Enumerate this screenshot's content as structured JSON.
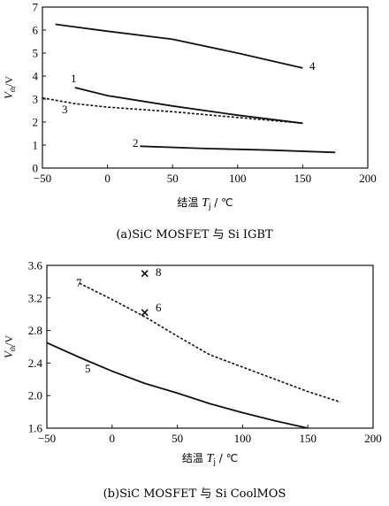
{
  "captions": [
    "(a)SiC MOSFET 与 Si IGBT",
    "(b)SiC MOSFET 与 Si CoolMOS"
  ],
  "axis_labels": {
    "x_prefix": "结温",
    "x_var": "T",
    "x_sub": "j",
    "x_unit": " / ℃",
    "y_var": "V",
    "y_sub": "th",
    "y_unit": "/V"
  },
  "chart_data": [
    {
      "type": "line",
      "caption": "(a)SiC MOSFET 与 Si IGBT",
      "xlim": [
        -50,
        200
      ],
      "ylim": [
        0,
        7
      ],
      "xticks": [
        -50,
        0,
        50,
        100,
        150,
        200
      ],
      "yticks": [
        0,
        1,
        2,
        3,
        4,
        5,
        6,
        7
      ],
      "grid": false,
      "series": [
        {
          "label": "4",
          "style": "solid",
          "x": [
            -40,
            0,
            50,
            100,
            150
          ],
          "y": [
            6.25,
            5.95,
            5.6,
            5.0,
            4.35
          ]
        },
        {
          "label": "1",
          "style": "solid",
          "x": [
            -25,
            0,
            50,
            100,
            150
          ],
          "y": [
            3.5,
            3.15,
            2.7,
            2.3,
            1.95
          ]
        },
        {
          "label": "3",
          "style": "dashed",
          "x": [
            -50,
            -25,
            0,
            50,
            100,
            150
          ],
          "y": [
            3.05,
            2.8,
            2.65,
            2.45,
            2.2,
            1.95
          ]
        },
        {
          "label": "2",
          "style": "solid",
          "x": [
            25,
            75,
            125,
            175
          ],
          "y": [
            0.95,
            0.85,
            0.78,
            0.68
          ]
        }
      ]
    },
    {
      "type": "line",
      "caption": "(b)SiC MOSFET 与 Si CoolMOS",
      "xlim": [
        -50,
        200
      ],
      "ylim": [
        1.6,
        3.6
      ],
      "xticks": [
        -50,
        0,
        50,
        100,
        150,
        200
      ],
      "yticks": [
        1.6,
        2.0,
        2.4,
        2.8,
        3.2,
        3.6
      ],
      "grid": false,
      "series": [
        {
          "label": "7",
          "style": "dashed",
          "x": [
            -25,
            0,
            25,
            50,
            75,
            100,
            125,
            150,
            175
          ],
          "y": [
            3.38,
            3.18,
            2.97,
            2.73,
            2.5,
            2.35,
            2.2,
            2.05,
            1.92
          ]
        },
        {
          "label": "5",
          "style": "solid",
          "x": [
            -50,
            -25,
            0,
            25,
            50,
            75,
            100,
            125,
            150
          ],
          "y": [
            2.65,
            2.47,
            2.3,
            2.15,
            2.03,
            1.9,
            1.79,
            1.69,
            1.6
          ]
        }
      ],
      "points": [
        {
          "label": "8",
          "marker": "x",
          "x": 25,
          "y": 3.5
        },
        {
          "label": "6",
          "marker": "x",
          "x": 25,
          "y": 3.02
        }
      ]
    }
  ]
}
